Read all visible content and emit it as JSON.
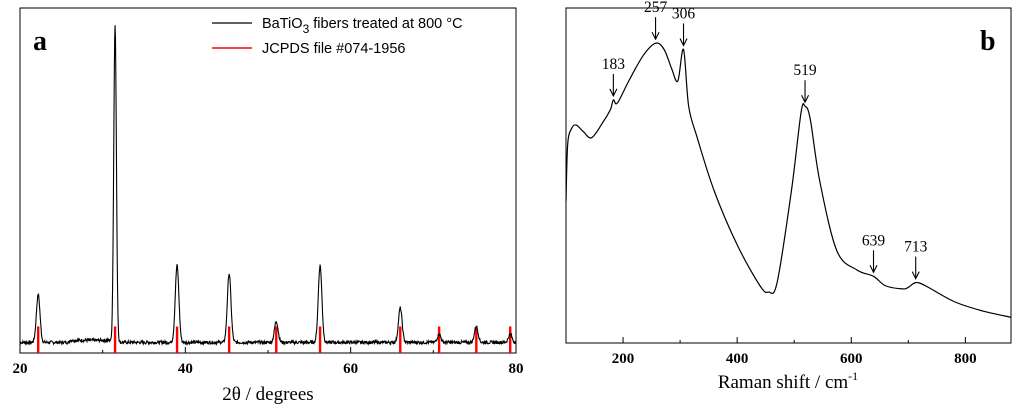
{
  "chart_data": [
    {
      "type": "line",
      "panel_label": "a",
      "xlabel": "2θ / degrees",
      "ylabel": "",
      "xlim": [
        20,
        80
      ],
      "xticks": [
        20,
        40,
        60,
        80
      ],
      "series": [
        {
          "name": "BaTiO3 fibers treated at 800 °C",
          "color": "#000000",
          "baseline": 2.0,
          "x": [
            20,
            22.2,
            31.5,
            39.0,
            45.3,
            51.0,
            56.3,
            66.0,
            70.7,
            75.2,
            79.3,
            80
          ],
          "y": [
            2.0,
            11.0,
            62.0,
            16.5,
            15.0,
            6.0,
            16.5,
            8.5,
            3.5,
            5.0,
            3.5,
            2.0
          ],
          "peaks": [
            {
              "x": 22.2,
              "y": 11.0
            },
            {
              "x": 31.5,
              "y": 62.0
            },
            {
              "x": 39.0,
              "y": 16.5
            },
            {
              "x": 45.3,
              "y": 15.0
            },
            {
              "x": 51.0,
              "y": 6.0
            },
            {
              "x": 56.3,
              "y": 16.5
            },
            {
              "x": 66.0,
              "y": 8.5
            },
            {
              "x": 70.7,
              "y": 3.5
            },
            {
              "x": 75.2,
              "y": 5.0
            },
            {
              "x": 79.3,
              "y": 3.5
            }
          ]
        },
        {
          "name": "JCPDS file #074-1956",
          "color": "#ff0000",
          "type": "stick",
          "x": [
            22.2,
            31.5,
            39.0,
            45.3,
            51.0,
            56.3,
            66.0,
            70.7,
            75.2,
            79.3
          ],
          "y": [
            5,
            5,
            5,
            5,
            5,
            5,
            5,
            5,
            5,
            5
          ]
        }
      ],
      "legend": {
        "placement": "top-right",
        "entries": [
          {
            "prefix": "BaTiO",
            "sub": "3",
            "suffix": " fibers treated at 800 °C"
          },
          {
            "prefix": "JCPDS file #074-1956",
            "sub": "",
            "suffix": ""
          }
        ]
      },
      "ylim": [
        0,
        65
      ]
    },
    {
      "type": "line",
      "panel_label": "b",
      "xlabel_main": "Raman shift / cm",
      "xlabel_sup": "-1",
      "ylabel": "",
      "xlim": [
        100,
        880
      ],
      "xticks": [
        200,
        400,
        600,
        800
      ],
      "ylim": [
        0,
        100
      ],
      "series": [
        {
          "name": "",
          "color": "#000000",
          "x": [
            100,
            103,
            110,
            118,
            130,
            145,
            165,
            178,
            183,
            190,
            210,
            235,
            257,
            272,
            285,
            296,
            306,
            315,
            330,
            360,
            400,
            440,
            455,
            470,
            495,
            512,
            519,
            528,
            545,
            575,
            610,
            639,
            660,
            690,
            700,
            713,
            730,
            780,
            830,
            880
          ],
          "y": [
            42,
            60,
            65,
            66,
            64,
            62,
            67,
            71,
            74,
            73,
            80,
            88,
            92,
            90,
            84,
            80,
            90,
            72,
            62,
            45,
            28,
            15,
            13,
            16,
            45,
            70,
            72,
            68,
            48,
            26,
            20,
            18,
            15,
            14,
            14.5,
            16,
            15,
            10,
            7,
            5
          ]
        }
      ],
      "annotations": [
        {
          "label": "183",
          "x": 183,
          "y": 74
        },
        {
          "label": "257",
          "x": 257,
          "y": 92
        },
        {
          "label": "306",
          "x": 306,
          "y": 90
        },
        {
          "label": "519",
          "x": 519,
          "y": 72
        },
        {
          "label": "639",
          "x": 639,
          "y": 18
        },
        {
          "label": "713",
          "x": 713,
          "y": 16
        }
      ]
    }
  ]
}
